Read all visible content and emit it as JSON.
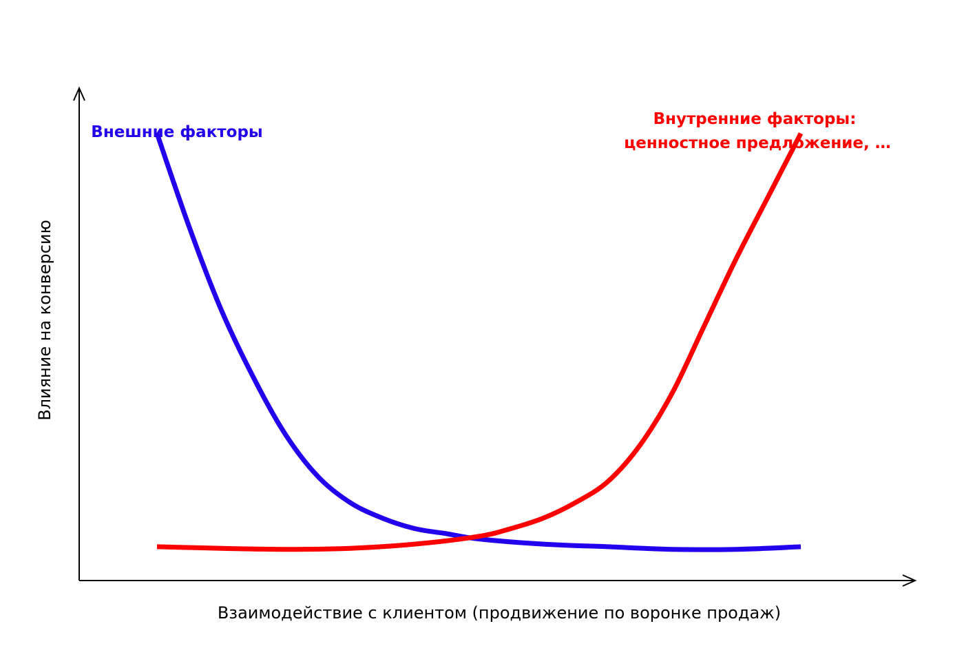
{
  "chart_data": {
    "type": "line",
    "title": "",
    "xlabel": "Взаимодействие с клиентом (продвижение по воронке продаж)",
    "ylabel": "Влияние на конверсию",
    "xlim": [
      0,
      1
    ],
    "ylim": [
      0,
      1
    ],
    "grid": false,
    "series": [
      {
        "name": "Внешние факторы",
        "color": "#2200EE",
        "x": [
          0.0,
          0.05,
          0.1,
          0.15,
          0.2,
          0.25,
          0.3,
          0.35,
          0.4,
          0.45,
          0.5,
          0.6,
          0.7,
          0.8,
          0.9,
          1.0
        ],
        "y": [
          0.86,
          0.68,
          0.52,
          0.39,
          0.28,
          0.2,
          0.15,
          0.12,
          0.1,
          0.09,
          0.08,
          0.07,
          0.065,
          0.06,
          0.06,
          0.065
        ]
      },
      {
        "name": "Внутренние факторы: ценностное предложение, …",
        "color": "#FF0000",
        "x": [
          0.0,
          0.1,
          0.2,
          0.3,
          0.4,
          0.5,
          0.55,
          0.6,
          0.65,
          0.7,
          0.75,
          0.8,
          0.85,
          0.9,
          0.95,
          1.0
        ],
        "y": [
          0.065,
          0.062,
          0.06,
          0.062,
          0.07,
          0.085,
          0.1,
          0.12,
          0.15,
          0.19,
          0.26,
          0.36,
          0.49,
          0.62,
          0.74,
          0.86
        ]
      }
    ]
  }
}
